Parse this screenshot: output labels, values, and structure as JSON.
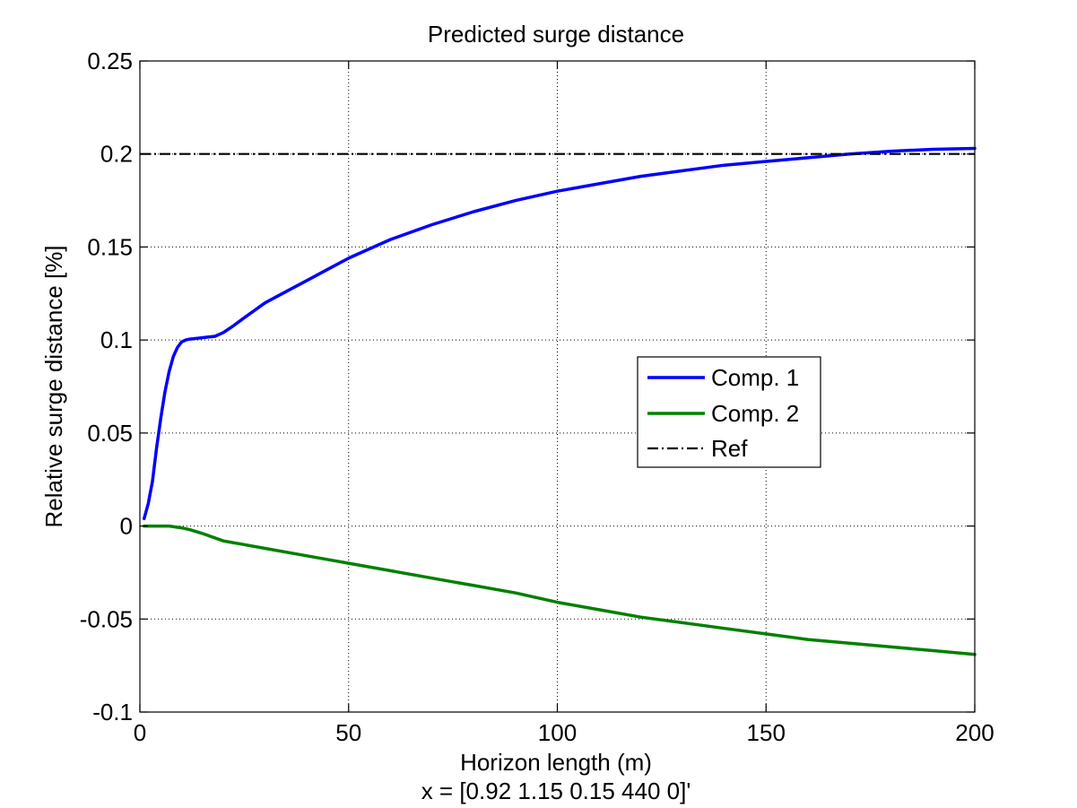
{
  "chart_data": {
    "type": "line",
    "title": "Predicted surge distance",
    "xlabel": "Horizon length (m)",
    "xlabel2": "x = [0.92 1.15 0.15 440 0]'",
    "ylabel": "Relative surge distance [%]",
    "xlim": [
      0,
      200
    ],
    "ylim": [
      -0.1,
      0.25
    ],
    "xticks": [
      0,
      50,
      100,
      150,
      200
    ],
    "xtick_labels": [
      "0",
      "50",
      "100",
      "150",
      "200"
    ],
    "yticks": [
      -0.1,
      -0.05,
      0,
      0.05,
      0.1,
      0.15,
      0.2,
      0.25
    ],
    "ytick_labels": [
      "-0.1",
      "-0.05",
      "0",
      "0.05",
      "0.1",
      "0.15",
      "0.2",
      "0.25"
    ],
    "grid": true,
    "legend_position": "center-right",
    "series": [
      {
        "name": "Comp. 1",
        "color": "#0000ff",
        "style": "solid",
        "x": [
          1,
          2,
          3,
          4,
          5,
          6,
          7,
          8,
          9,
          10,
          11,
          12,
          14,
          16,
          18,
          20,
          22,
          25,
          30,
          35,
          40,
          45,
          50,
          55,
          60,
          70,
          80,
          90,
          100,
          110,
          120,
          130,
          140,
          150,
          160,
          170,
          180,
          190,
          200
        ],
        "y": [
          0.004,
          0.012,
          0.024,
          0.042,
          0.058,
          0.072,
          0.083,
          0.091,
          0.096,
          0.099,
          0.1,
          0.1005,
          0.101,
          0.1015,
          0.102,
          0.104,
          0.107,
          0.112,
          0.12,
          0.126,
          0.132,
          0.138,
          0.144,
          0.149,
          0.154,
          0.162,
          0.169,
          0.175,
          0.18,
          0.184,
          0.188,
          0.191,
          0.194,
          0.196,
          0.198,
          0.2,
          0.2015,
          0.2025,
          0.203
        ]
      },
      {
        "name": "Comp. 2",
        "color": "#008000",
        "style": "solid",
        "x": [
          1,
          3,
          5,
          7,
          10,
          12,
          15,
          20,
          25,
          30,
          40,
          50,
          60,
          70,
          80,
          90,
          100,
          110,
          120,
          130,
          140,
          150,
          160,
          170,
          180,
          190,
          200
        ],
        "y": [
          0,
          0,
          0,
          0,
          -0.001,
          -0.002,
          -0.004,
          -0.008,
          -0.01,
          -0.012,
          -0.016,
          -0.02,
          -0.024,
          -0.028,
          -0.032,
          -0.036,
          -0.041,
          -0.045,
          -0.049,
          -0.052,
          -0.055,
          -0.058,
          -0.061,
          -0.063,
          -0.065,
          -0.067,
          -0.069
        ]
      },
      {
        "name": "Ref",
        "color": "#000000",
        "style": "dashdot",
        "x": [
          0,
          200
        ],
        "y": [
          0.2,
          0.2
        ]
      }
    ]
  }
}
